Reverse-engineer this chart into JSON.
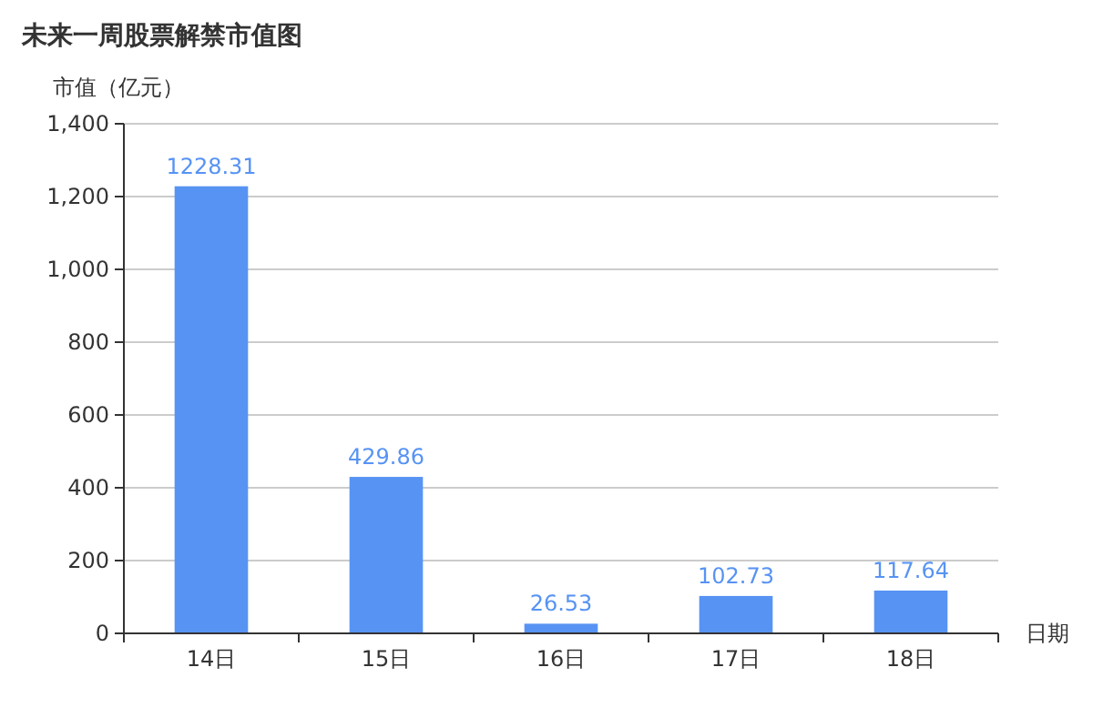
{
  "chart_data": {
    "type": "bar",
    "title": "未来一周股票解禁市值图",
    "ylabel": "市值（亿元）",
    "xlabel": "日期",
    "categories": [
      "14日",
      "15日",
      "16日",
      "17日",
      "18日"
    ],
    "values": [
      1228.31,
      429.86,
      26.53,
      102.73,
      117.64
    ],
    "color": "#5793f3",
    "ylim": [
      0,
      1400
    ],
    "yticks": [
      0,
      {
        "value": 200,
        "label": "200"
      },
      {
        "value": 400,
        "label": "400"
      },
      {
        "value": 600,
        "label": "600"
      },
      {
        "value": 800,
        "label": "800"
      },
      {
        "value": 1000,
        "label": "1,000"
      },
      {
        "value": 1200,
        "label": "1,200"
      },
      {
        "value": 1400,
        "label": "1,400"
      }
    ],
    "grid": "y",
    "data_labels": true
  }
}
